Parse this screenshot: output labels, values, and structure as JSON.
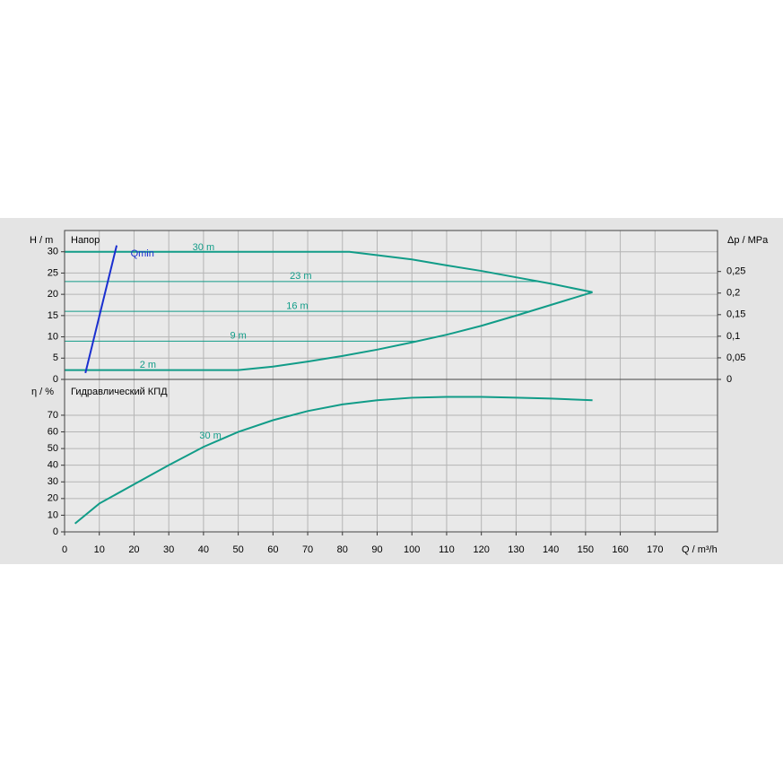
{
  "chart_data": [
    {
      "type": "line",
      "title": "Напор",
      "y_label": "H / m",
      "y2_label": "Δp / MPa",
      "xlim": [
        0,
        188
      ],
      "ylim": [
        0,
        35
      ],
      "yticks": [
        0,
        5,
        10,
        15,
        20,
        25,
        30
      ],
      "y2lim": [
        0,
        0.345
      ],
      "y2ticks": [
        0,
        {
          "value": 0.05,
          "label": "0,05"
        },
        {
          "value": 0.1,
          "label": "0,1"
        },
        {
          "value": 0.15,
          "label": "0,15"
        },
        {
          "value": 0.2,
          "label": "0,2"
        },
        {
          "value": 0.25,
          "label": "0,25"
        }
      ],
      "grid": true,
      "series": [
        {
          "name": "30 m",
          "color": "#119c88",
          "line_width": 2,
          "x": [
            0,
            82,
            90,
            100,
            110,
            120,
            130,
            140,
            152
          ],
          "values": [
            30,
            30,
            29.2,
            28.2,
            26.8,
            25.5,
            24,
            22.5,
            20.5
          ]
        },
        {
          "name": "23 m",
          "color": "#119c88",
          "line_width": 1,
          "x": [
            0,
            137
          ],
          "values": [
            23,
            23
          ]
        },
        {
          "name": "16 m",
          "color": "#119c88",
          "line_width": 1,
          "x": [
            0,
            134
          ],
          "values": [
            16,
            16
          ]
        },
        {
          "name": "9 m",
          "color": "#119c88",
          "line_width": 1,
          "x": [
            0,
            101
          ],
          "values": [
            9,
            9
          ]
        },
        {
          "name": "2 m",
          "color": "#119c88",
          "line_width": 2,
          "x": [
            0,
            50,
            60,
            70,
            80,
            90,
            100,
            110,
            120,
            130,
            140,
            152
          ],
          "values": [
            2.2,
            2.2,
            3,
            4.2,
            5.5,
            7,
            8.7,
            10.5,
            12.6,
            15,
            17.5,
            20.5
          ]
        },
        {
          "name": "Qmin",
          "color": "#1a2fd0",
          "line_width": 2,
          "x": [
            6,
            15
          ],
          "values": [
            1.5,
            31.5
          ]
        }
      ]
    },
    {
      "type": "line",
      "title": "Гидравлический КПД",
      "y_label": "η / %",
      "x_label": "Q / m³/h",
      "xlim": [
        0,
        188
      ],
      "xticks": [
        0,
        10,
        20,
        30,
        40,
        50,
        60,
        70,
        80,
        90,
        100,
        110,
        120,
        130,
        140,
        150,
        160,
        170
      ],
      "ylim": [
        0,
        91.5
      ],
      "yticks": [
        0,
        10,
        20,
        30,
        40,
        50,
        60,
        70
      ],
      "grid": true,
      "series": [
        {
          "name": "30 m",
          "color": "#119c88",
          "line_width": 2,
          "x": [
            3,
            10,
            20,
            30,
            40,
            50,
            60,
            70,
            80,
            90,
            100,
            110,
            120,
            130,
            140,
            152
          ],
          "values": [
            5,
            17,
            28.5,
            40,
            51,
            60,
            67,
            72.5,
            76.5,
            79,
            80.5,
            81,
            81,
            80.5,
            80,
            79
          ]
        }
      ]
    }
  ]
}
